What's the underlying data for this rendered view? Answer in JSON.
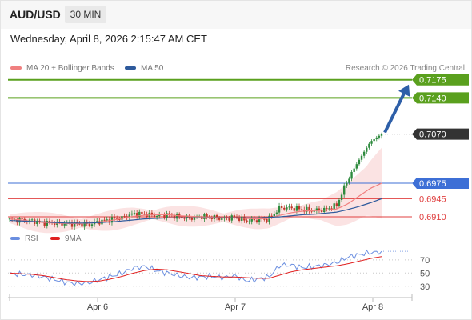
{
  "header": {
    "symbol": "AUD/USD",
    "timeframe": "30 MIN"
  },
  "datetime": "Wednesday, April 8, 2026 2:15:47 AM CET",
  "legend": {
    "ma20_label": "MA 20 + Bollinger Bands",
    "ma50_label": "MA 50",
    "credit": "Research © 2026 Trading Central"
  },
  "rsi_legend": {
    "rsi_label": "RSI",
    "ma9_label": "9MA"
  },
  "colors": {
    "resistance": "#5aa01e",
    "pivot": "#3d6fd6",
    "support": "#e04040",
    "current": "#333333",
    "ma20": "#f08080",
    "ma50": "#2e5a9c",
    "rsi": "#6a8ee0",
    "rsi_ma": "#e02020",
    "arrow": "#2e5fa8",
    "bull": "#2e8b3e",
    "bear": "#c0392b"
  },
  "chart_data": [
    {
      "type": "candlestick",
      "symbol": "AUD/USD",
      "timeframe": "30 MIN",
      "x_ticks": [
        "Apr 6",
        "Apr 7",
        "Apr 8"
      ],
      "ylim": [
        0.6893,
        0.719
      ],
      "levels": [
        {
          "value": 0.7175,
          "label": "0.7175",
          "kind": "resistance"
        },
        {
          "value": 0.714,
          "label": "0.7140",
          "kind": "resistance"
        },
        {
          "value": 0.6975,
          "label": "0.6975",
          "kind": "pivot"
        },
        {
          "value": 0.6945,
          "label": "0.6945",
          "kind": "support"
        },
        {
          "value": 0.691,
          "label": "0.6910",
          "kind": "support"
        }
      ],
      "current_price": {
        "value": 0.707,
        "label": "0.7070"
      },
      "forecast": {
        "direction": "up",
        "from": 0.707,
        "to": 0.7175
      },
      "close_path": [
        0.6904,
        0.6904,
        0.6902,
        0.6899,
        0.6898,
        0.6897,
        0.6896,
        0.6895,
        0.6901,
        0.6905,
        0.6908,
        0.6916,
        0.6915,
        0.6912,
        0.6914,
        0.691,
        0.6908,
        0.6911,
        0.6909,
        0.6906,
        0.691,
        0.6902,
        0.6904,
        0.6906,
        0.6928,
        0.6927,
        0.6924,
        0.6922,
        0.6924,
        0.6932,
        0.6982,
        0.702,
        0.7055,
        0.707
      ],
      "ma20_path": [
        0.6906,
        0.6904,
        0.6901,
        0.6899,
        0.6898,
        0.6897,
        0.6897,
        0.6898,
        0.69,
        0.6903,
        0.6907,
        0.6911,
        0.6913,
        0.6914,
        0.6914,
        0.6912,
        0.6911,
        0.691,
        0.6909,
        0.6908,
        0.6908,
        0.6907,
        0.6906,
        0.6907,
        0.6913,
        0.6918,
        0.6921,
        0.6922,
        0.6923,
        0.6925,
        0.6935,
        0.695,
        0.6965,
        0.6975
      ],
      "ma50_path": [
        0.6903,
        0.6902,
        0.6901,
        0.69,
        0.6899,
        0.6898,
        0.6898,
        0.6898,
        0.6899,
        0.69,
        0.6902,
        0.6904,
        0.6906,
        0.6907,
        0.6908,
        0.6908,
        0.6908,
        0.6908,
        0.6908,
        0.6908,
        0.6908,
        0.6908,
        0.6908,
        0.6909,
        0.691,
        0.6912,
        0.6914,
        0.6915,
        0.6917,
        0.6919,
        0.6924,
        0.693,
        0.6937,
        0.6945
      ]
    },
    {
      "type": "line",
      "title": "RSI",
      "ylim": [
        20,
        88
      ],
      "y_ticks": [
        30,
        50,
        70
      ],
      "series": [
        {
          "name": "RSI",
          "values": [
            49,
            48,
            47,
            44,
            40,
            36,
            34,
            35,
            40,
            45,
            50,
            58,
            60,
            54,
            50,
            46,
            43,
            44,
            45,
            43,
            46,
            38,
            41,
            44,
            62,
            62,
            58,
            60,
            62,
            66,
            74,
            78,
            81,
            82
          ]
        },
        {
          "name": "9MA",
          "values": [
            50,
            49,
            48,
            46,
            43,
            40,
            38,
            37,
            38,
            41,
            45,
            50,
            54,
            56,
            55,
            52,
            49,
            46,
            45,
            44,
            44,
            43,
            42,
            42,
            47,
            52,
            55,
            57,
            59,
            61,
            64,
            68,
            72,
            75
          ]
        }
      ]
    }
  ]
}
